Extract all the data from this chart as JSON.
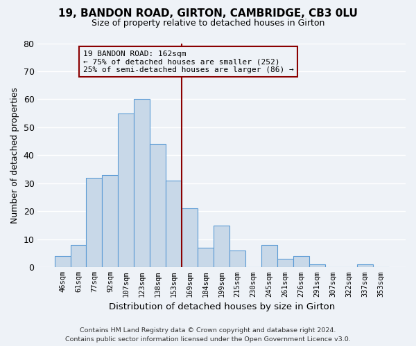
{
  "title": "19, BANDON ROAD, GIRTON, CAMBRIDGE, CB3 0LU",
  "subtitle": "Size of property relative to detached houses in Girton",
  "xlabel": "Distribution of detached houses by size in Girton",
  "ylabel": "Number of detached properties",
  "bin_labels": [
    "46sqm",
    "61sqm",
    "77sqm",
    "92sqm",
    "107sqm",
    "123sqm",
    "138sqm",
    "153sqm",
    "169sqm",
    "184sqm",
    "199sqm",
    "215sqm",
    "230sqm",
    "245sqm",
    "261sqm",
    "276sqm",
    "291sqm",
    "307sqm",
    "322sqm",
    "337sqm",
    "353sqm"
  ],
  "bin_values": [
    4,
    8,
    32,
    33,
    55,
    60,
    44,
    31,
    21,
    7,
    15,
    6,
    0,
    8,
    3,
    4,
    1,
    0,
    0,
    1,
    0
  ],
  "bar_color": "#c8d8e8",
  "bar_edge_color": "#5b9bd5",
  "property_line_color": "#8b0000",
  "annotation_line1": "19 BANDON ROAD: 162sqm",
  "annotation_line2": "← 75% of detached houses are smaller (252)",
  "annotation_line3": "25% of semi-detached houses are larger (86) →",
  "annotation_box_color": "#8b0000",
  "ylim": [
    0,
    80
  ],
  "yticks": [
    0,
    10,
    20,
    30,
    40,
    50,
    60,
    70,
    80
  ],
  "footer_line1": "Contains HM Land Registry data © Crown copyright and database right 2024.",
  "footer_line2": "Contains public sector information licensed under the Open Government Licence v3.0.",
  "background_color": "#eef2f7",
  "grid_color": "#ffffff"
}
